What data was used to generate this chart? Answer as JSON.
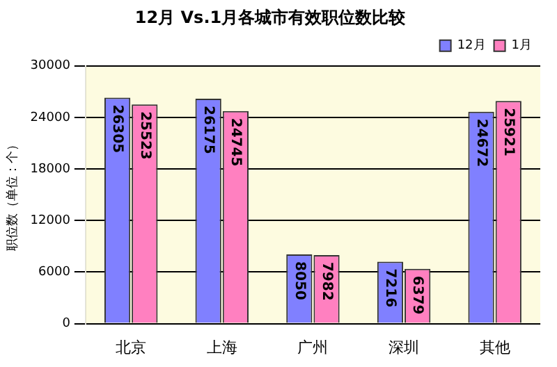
{
  "chart_data": {
    "type": "bar",
    "title": "12月 Vs.1月各城市有效职位数比较",
    "ylabel": "职位数（单位：个）",
    "categories": [
      "北京",
      "上海",
      "广州",
      "深圳",
      "其他"
    ],
    "series": [
      {
        "name": "12月",
        "color": "#8080ff",
        "values": [
          26305,
          26175,
          8050,
          7216,
          24672
        ]
      },
      {
        "name": "1月",
        "color": "#ff80c0",
        "values": [
          25523,
          24745,
          7982,
          6379,
          25921
        ]
      }
    ],
    "ylim": [
      0,
      30000
    ],
    "yticks": [
      0,
      6000,
      12000,
      18000,
      24000,
      30000
    ],
    "grid": "y",
    "legend": "top right",
    "data_labels": true
  }
}
